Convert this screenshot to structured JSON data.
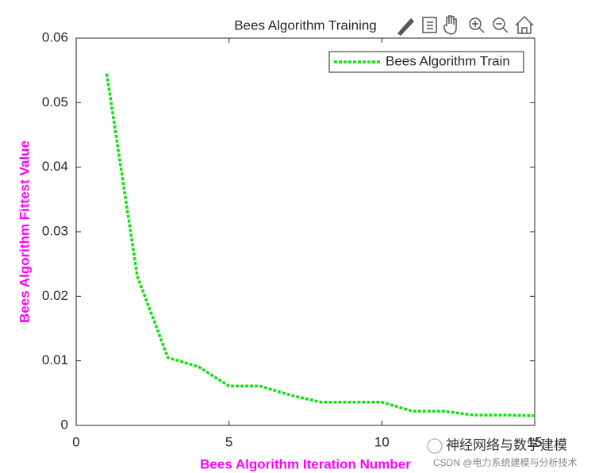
{
  "chart_data": {
    "type": "line",
    "title": "Bees Algorithm Training",
    "xlabel": "Bees Algorithm Iteration Number",
    "ylabel": "Bees Algorithm Fittest Value",
    "x": [
      1,
      2,
      3,
      4,
      5,
      6,
      7,
      8,
      9,
      10,
      11,
      12,
      13,
      14,
      15
    ],
    "series": [
      {
        "name": "Bees Algorithm Train",
        "color": "#12e012",
        "values": [
          0.0545,
          0.0231,
          0.0105,
          0.0091,
          0.0061,
          0.0061,
          0.0047,
          0.0036,
          0.0036,
          0.0036,
          0.0022,
          0.0022,
          0.0016,
          0.0016,
          0.0015
        ]
      }
    ],
    "xlim": [
      0,
      15
    ],
    "xticks": [
      0,
      5,
      10,
      15
    ],
    "ylim": [
      0,
      0.06
    ],
    "yticks": [
      0,
      0.01,
      0.02,
      0.03,
      0.04,
      0.05,
      0.06
    ],
    "grid": false,
    "legend_position": "northeast"
  },
  "watermark": {
    "account": "神经网络与数学建模",
    "source": "CSDN @电力系统建模与分析技术"
  }
}
